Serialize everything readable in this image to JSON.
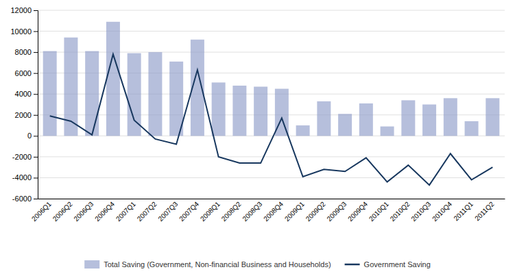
{
  "chart_data": {
    "type": "bar",
    "categories": [
      "2006Q1",
      "2006Q2",
      "2006Q3",
      "2006Q4",
      "2007Q1",
      "2007Q2",
      "2007Q3",
      "2007Q4",
      "2008Q1",
      "2008Q2",
      "2008Q3",
      "2008Q4",
      "2009Q1",
      "2009Q2",
      "2009Q3",
      "2009Q4",
      "2010Q1",
      "2010Q2",
      "2010Q3",
      "2010Q4",
      "2011Q1",
      "2011Q2"
    ],
    "series": [
      {
        "name": "Total Saving (Government, Non-financial Business and Households)",
        "type": "bar",
        "color": "#8f9dc9",
        "values": [
          8100,
          9400,
          8100,
          10900,
          7900,
          8000,
          7100,
          9200,
          5100,
          4800,
          4700,
          4500,
          1000,
          3300,
          2100,
          3100,
          900,
          3400,
          3000,
          3600,
          1400,
          3600
        ]
      },
      {
        "name": "Government Saving",
        "type": "line",
        "color": "#17375e",
        "values": [
          1900,
          1400,
          100,
          7800,
          1500,
          -300,
          -800,
          6300,
          -2000,
          -2600,
          -2600,
          1700,
          -3900,
          -3200,
          -3400,
          -2100,
          -4400,
          -2800,
          -4700,
          -1700,
          -4200,
          -3000
        ]
      }
    ],
    "ylim": [
      -6000,
      12000
    ],
    "yticks": [
      -6000,
      -4000,
      -2000,
      0,
      2000,
      4000,
      6000,
      8000,
      10000,
      12000
    ],
    "grid": true,
    "legend": "bottom"
  }
}
